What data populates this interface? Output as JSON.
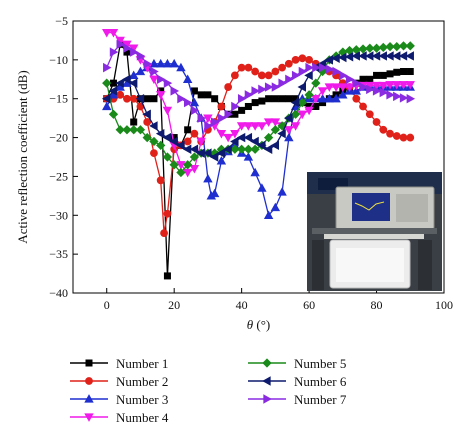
{
  "chart_data": {
    "type": "line",
    "title": "",
    "xlabel": "θ (°)",
    "ylabel": "Active reflection coefficient (dB)",
    "xlim": [
      -10,
      100
    ],
    "ylim": [
      -40,
      -5
    ],
    "xticks": [
      0,
      20,
      40,
      60,
      80,
      100
    ],
    "yticks": [
      -5,
      -10,
      -15,
      -20,
      -25,
      -30,
      -35,
      -40
    ],
    "grid": false,
    "legend_position": "bottom",
    "series": [
      {
        "name": "Number 1",
        "color": "#000000",
        "marker": "square",
        "x": [
          0,
          2,
          4,
          6,
          8,
          10,
          12,
          14,
          16,
          18,
          20,
          22,
          24,
          26,
          28,
          30,
          32,
          34,
          36,
          38,
          40,
          42,
          44,
          46,
          48,
          50,
          52,
          54,
          56,
          58,
          60,
          62,
          64,
          66,
          68,
          70,
          72,
          74,
          76,
          78,
          80,
          82,
          84,
          86,
          88,
          90
        ],
        "y": [
          -15,
          -13,
          -8,
          -9,
          -18,
          -15,
          -15,
          -15,
          -14,
          -37.8,
          -20,
          -21,
          -19,
          -14,
          -14.5,
          -14.5,
          -15,
          -16,
          -17,
          -17,
          -16.5,
          -16,
          -15.5,
          -15.3,
          -15,
          -15,
          -15,
          -15,
          -15,
          -15.5,
          -16,
          -16,
          -15.5,
          -15,
          -14.5,
          -14,
          -13.5,
          -13,
          -12.5,
          -12.5,
          -12,
          -12,
          -11.8,
          -11.6,
          -11.5,
          -11.5
        ]
      },
      {
        "name": "Number 2",
        "color": "#e0211a",
        "marker": "circle",
        "x": [
          0,
          2,
          4,
          6,
          8,
          10,
          12,
          14,
          16,
          17,
          18,
          20,
          22,
          24,
          26,
          28,
          30,
          32,
          34,
          36,
          38,
          40,
          42,
          44,
          46,
          48,
          50,
          52,
          54,
          56,
          58,
          60,
          62,
          64,
          66,
          68,
          70,
          72,
          74,
          76,
          78,
          80,
          82,
          84,
          86,
          88,
          90
        ],
        "y": [
          -15,
          -15,
          -14.5,
          -15,
          -15,
          -16,
          -18,
          -22,
          -25.5,
          -32.3,
          -29.8,
          -21.5,
          -21,
          -20.5,
          -19.5,
          -20.5,
          -19,
          -18,
          -16,
          -13.5,
          -12,
          -11,
          -11,
          -11.5,
          -12,
          -12,
          -11.5,
          -11,
          -10.5,
          -10,
          -9.8,
          -10,
          -10.5,
          -11,
          -11.5,
          -12,
          -13,
          -13.5,
          -15,
          -16,
          -17,
          -18,
          -19,
          -19.5,
          -19.8,
          -20,
          -20
        ]
      },
      {
        "name": "Number 3",
        "color": "#1f2fcf",
        "marker": "triangle-up",
        "x": [
          0,
          2,
          4,
          6,
          8,
          10,
          12,
          14,
          16,
          18,
          20,
          22,
          24,
          26,
          28,
          30,
          31,
          32,
          34,
          36,
          38,
          40,
          42,
          44,
          46,
          48,
          50,
          52,
          54,
          56,
          58,
          60,
          62,
          64,
          66,
          68,
          70,
          72,
          74,
          76,
          78,
          80,
          82,
          84,
          86,
          88,
          90
        ],
        "y": [
          -16,
          -14.5,
          -13.5,
          -13,
          -12,
          -11.5,
          -11,
          -10.5,
          -10.5,
          -10.5,
          -10.5,
          -11,
          -12.5,
          -15.5,
          -17.5,
          -25.3,
          -27.5,
          -27.2,
          -23,
          -21.8,
          -21,
          -22,
          -22.5,
          -24.5,
          -26.5,
          -30,
          -29,
          -27,
          -20,
          -16,
          -15,
          -15,
          -15,
          -15,
          -15,
          -15,
          -14.5,
          -14,
          -14,
          -13.5,
          -13.5,
          -13.5,
          -13.5,
          -13.5,
          -13.5,
          -13.5,
          -13.5
        ]
      },
      {
        "name": "Number 4",
        "color": "#f01aea",
        "marker": "triangle-down",
        "x": [
          0,
          2,
          4,
          6,
          8,
          10,
          12,
          14,
          16,
          18,
          20,
          22,
          24,
          26,
          28,
          30,
          32,
          34,
          36,
          38,
          40,
          42,
          44,
          46,
          48,
          50,
          52,
          54,
          56,
          58,
          60,
          62,
          64,
          66,
          68,
          70,
          72,
          74,
          76,
          78,
          80,
          82,
          84,
          86,
          88,
          90
        ],
        "y": [
          -6.5,
          -6.5,
          -7.5,
          -8,
          -8.5,
          -10,
          -11,
          -12.5,
          -14.5,
          -16.5,
          -21,
          -23.5,
          -24.5,
          -24,
          -20.5,
          -17.5,
          -18.5,
          -19.5,
          -20,
          -19.5,
          -18.5,
          -18.5,
          -18.5,
          -18.5,
          -18,
          -18,
          -18.5,
          -19,
          -18.5,
          -17,
          -16.5,
          -15,
          -14,
          -13.5,
          -13.5,
          -13.5,
          -13.5,
          -13.3,
          -13.3,
          -13.3,
          -13.3,
          -13.3,
          -13.2,
          -13.2,
          -13.2,
          -13.2
        ]
      },
      {
        "name": "Number 5",
        "color": "#1a8a1a",
        "marker": "diamond",
        "x": [
          0,
          2,
          4,
          6,
          8,
          10,
          12,
          14,
          16,
          18,
          20,
          22,
          24,
          26,
          28,
          30,
          32,
          34,
          36,
          38,
          40,
          42,
          44,
          46,
          48,
          50,
          52,
          54,
          56,
          58,
          60,
          62,
          64,
          66,
          68,
          70,
          72,
          74,
          76,
          78,
          80,
          82,
          84,
          86,
          88,
          90
        ],
        "y": [
          -13,
          -17,
          -19,
          -19,
          -19,
          -19,
          -20,
          -20.5,
          -21,
          -22.5,
          -23.5,
          -24.5,
          -23.5,
          -22.5,
          -22,
          -22,
          -22,
          -21.5,
          -21.5,
          -21.5,
          -21.5,
          -21.5,
          -21.5,
          -21,
          -20,
          -19,
          -18.5,
          -17.5,
          -17,
          -15.5,
          -14.5,
          -13,
          -11.5,
          -10,
          -9.5,
          -9,
          -8.8,
          -8.7,
          -8.6,
          -8.5,
          -8.5,
          -8.4,
          -8.3,
          -8.3,
          -8.2,
          -8.2
        ]
      },
      {
        "name": "Number 6",
        "color": "#0d1a6e",
        "marker": "triangle-left",
        "x": [
          0,
          2,
          4,
          6,
          8,
          10,
          12,
          14,
          16,
          18,
          20,
          22,
          24,
          26,
          28,
          30,
          32,
          34,
          36,
          38,
          40,
          42,
          44,
          46,
          48,
          50,
          52,
          54,
          56,
          58,
          60,
          62,
          64,
          66,
          68,
          70,
          72,
          74,
          76,
          78,
          80,
          82,
          84,
          86,
          88,
          90
        ],
        "y": [
          -15,
          -14,
          -13,
          -12.5,
          -13,
          -15,
          -17,
          -18.5,
          -19.5,
          -20,
          -20.5,
          -21,
          -21.5,
          -21.5,
          -22,
          -22,
          -22.5,
          -22,
          -21.5,
          -20.5,
          -20,
          -20,
          -20.5,
          -21,
          -21.5,
          -21,
          -19.5,
          -17.5,
          -15.5,
          -13.5,
          -12,
          -11,
          -10.5,
          -10,
          -9.8,
          -9.7,
          -9.6,
          -9.5,
          -9.5,
          -9.5,
          -9.5,
          -9.5,
          -9.5,
          -9.5,
          -9.5,
          -9.5
        ]
      },
      {
        "name": "Number 7",
        "color": "#8a2be2",
        "marker": "triangle-right",
        "x": [
          0,
          2,
          4,
          6,
          8,
          10,
          12,
          14,
          16,
          18,
          20,
          22,
          24,
          26,
          28,
          30,
          32,
          34,
          36,
          38,
          40,
          42,
          44,
          46,
          48,
          50,
          52,
          54,
          56,
          58,
          60,
          62,
          64,
          66,
          68,
          70,
          72,
          74,
          76,
          78,
          80,
          82,
          84,
          86,
          88,
          90
        ],
        "y": [
          -11,
          -9,
          -8,
          -8.5,
          -9,
          -9.5,
          -10.5,
          -11.5,
          -12.5,
          -13,
          -14,
          -15,
          -15.5,
          -16.5,
          -17.5,
          -18.5,
          -18,
          -17.5,
          -17,
          -16,
          -15,
          -14.5,
          -14,
          -13.8,
          -13.5,
          -13.5,
          -13,
          -12.5,
          -12,
          -11.5,
          -11,
          -11,
          -11,
          -11.2,
          -11.5,
          -12,
          -12.5,
          -13,
          -13.5,
          -13.8,
          -14,
          -14.2,
          -14.5,
          -14.7,
          -14.9,
          -15
        ]
      }
    ]
  }
}
